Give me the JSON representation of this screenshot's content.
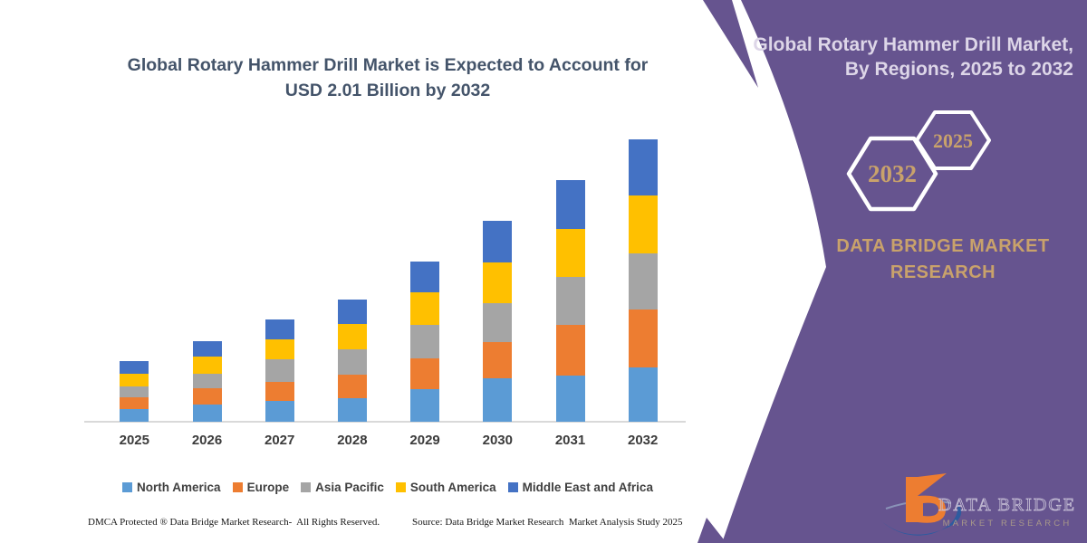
{
  "main_title": {
    "line1": "Global Rotary Hammer Drill Market is Expected to Account for",
    "line2": "USD 2.01 Billion by 2032"
  },
  "chart_data": {
    "type": "bar",
    "stacked": true,
    "title": "Global Rotary Hammer Drill Market is Expected to Account for USD 2.01 Billion by 2032",
    "values_unit": "USD billion (estimated from bar heights; 2032 total stated as 2.01)",
    "categories": [
      "2025",
      "2026",
      "2027",
      "2028",
      "2029",
      "2030",
      "2031",
      "2032"
    ],
    "series": [
      {
        "name": "North America",
        "color": "#5B9BD5",
        "values": [
          0.088,
          0.124,
          0.15,
          0.168,
          0.23,
          0.31,
          0.33,
          0.39
        ]
      },
      {
        "name": "Europe",
        "color": "#ED7D31",
        "values": [
          0.086,
          0.112,
          0.135,
          0.168,
          0.221,
          0.26,
          0.36,
          0.41
        ]
      },
      {
        "name": "Asia Pacific",
        "color": "#A5A5A5",
        "values": [
          0.079,
          0.108,
          0.157,
          0.182,
          0.236,
          0.275,
          0.34,
          0.4
        ]
      },
      {
        "name": "South America",
        "color": "#FFC000",
        "values": [
          0.09,
          0.12,
          0.144,
          0.176,
          0.236,
          0.29,
          0.34,
          0.41
        ]
      },
      {
        "name": "Middle East and Africa",
        "color": "#4472C4",
        "values": [
          0.088,
          0.112,
          0.144,
          0.176,
          0.215,
          0.295,
          0.35,
          0.4
        ]
      }
    ],
    "totals_by_year": [
      0.431,
      0.576,
      0.73,
      0.87,
      1.138,
      1.43,
      1.72,
      2.01
    ],
    "ylim": [
      0,
      2.15
    ],
    "y_axis_visible": false,
    "grid": false,
    "legend_position": "bottom"
  },
  "footer": {
    "dmca": "DMCA Protected ® Data Bridge Market Research-  All Rights Reserved.",
    "source": "Source: Data Bridge Market Research  Market Analysis Study 2025"
  },
  "side_panel": {
    "background_color": "#66548F",
    "accent_color": "#C9A26B",
    "title_line1": "Global Rotary Hammer Drill Market,",
    "title_line2": "By Regions, 2025 to 2032",
    "hexagon_back_label": "2032",
    "hexagon_front_label": "2025",
    "brand_line1": "DATA BRIDGE MARKET",
    "brand_line2": "RESEARCH",
    "logo_line1": "DATA BRIDGE",
    "logo_line2": "MARKET RESEARCH"
  }
}
